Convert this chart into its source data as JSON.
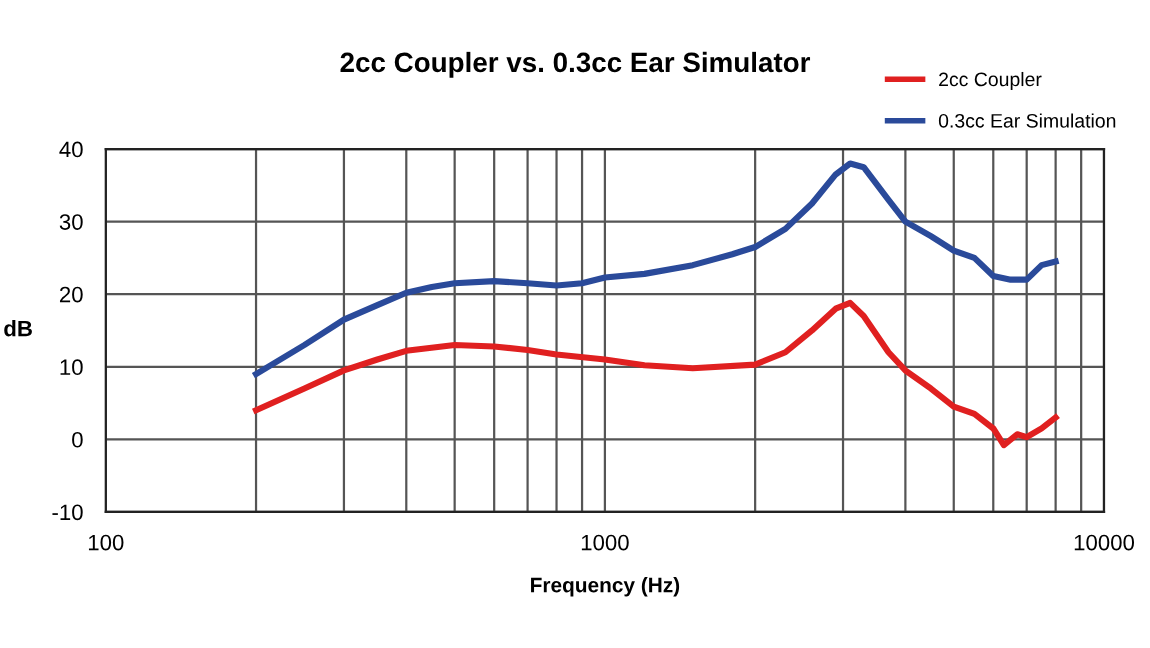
{
  "chart_data": {
    "type": "line",
    "title": "2cc Coupler vs. 0.3cc Ear Simulator",
    "xlabel": "Frequency (Hz)",
    "ylabel": "dB",
    "log": "x",
    "grid": true,
    "legend": "top right",
    "line_style": "solid",
    "marker": "none",
    "xlim": [
      100,
      10000
    ],
    "xticks": [
      100,
      {
        "value": 200,
        "label": null
      },
      {
        "value": 300,
        "label": null
      },
      {
        "value": 400,
        "label": null
      },
      {
        "value": 500,
        "label": null
      },
      {
        "value": 600,
        "label": null
      },
      {
        "value": 700,
        "label": null
      },
      {
        "value": 800,
        "label": null
      },
      {
        "value": 900,
        "label": null
      },
      1000,
      {
        "value": 2000,
        "label": null
      },
      {
        "value": 3000,
        "label": null
      },
      {
        "value": 4000,
        "label": null
      },
      {
        "value": 5000,
        "label": null
      },
      {
        "value": 6000,
        "label": null
      },
      {
        "value": 7000,
        "label": null
      },
      {
        "value": 8000,
        "label": null
      },
      {
        "value": 9000,
        "label": null
      },
      10000
    ],
    "ylim": [
      -10,
      40
    ],
    "yticks": [
      -10,
      0,
      10,
      20,
      30,
      40
    ],
    "series": [
      {
        "name": "2cc Coupler",
        "color": "#e02020",
        "x": [
          200,
          250,
          300,
          350,
          400,
          500,
          600,
          700,
          800,
          1000,
          1200,
          1500,
          2000,
          2300,
          2600,
          2900,
          3100,
          3300,
          3700,
          4000,
          4500,
          5000,
          5500,
          6000,
          6300,
          6700,
          7000,
          7500,
          8000
        ],
        "values": [
          4,
          7,
          9.5,
          11,
          12.2,
          13,
          12.8,
          12.3,
          11.7,
          11,
          10.2,
          9.8,
          10.3,
          12,
          15,
          18,
          18.8,
          17,
          12,
          9.5,
          7,
          4.5,
          3.5,
          1.5,
          -0.8,
          0.7,
          0.3,
          1.5,
          3
        ]
      },
      {
        "name": "0.3cc Ear Simulation",
        "color": "#2a4a9a",
        "x": [
          200,
          250,
          300,
          350,
          400,
          450,
          500,
          600,
          700,
          800,
          900,
          1000,
          1200,
          1500,
          1800,
          2000,
          2300,
          2600,
          2900,
          3100,
          3300,
          3700,
          4000,
          4500,
          5000,
          5500,
          6000,
          6500,
          7000,
          7500,
          8000
        ],
        "values": [
          9,
          13,
          16.5,
          18.5,
          20.2,
          21,
          21.5,
          21.8,
          21.5,
          21.2,
          21.5,
          22.3,
          22.8,
          24,
          25.5,
          26.5,
          29,
          32.5,
          36.5,
          38,
          37.5,
          33,
          30,
          28,
          26,
          25,
          22.5,
          22,
          22,
          24,
          24.5
        ]
      }
    ]
  }
}
